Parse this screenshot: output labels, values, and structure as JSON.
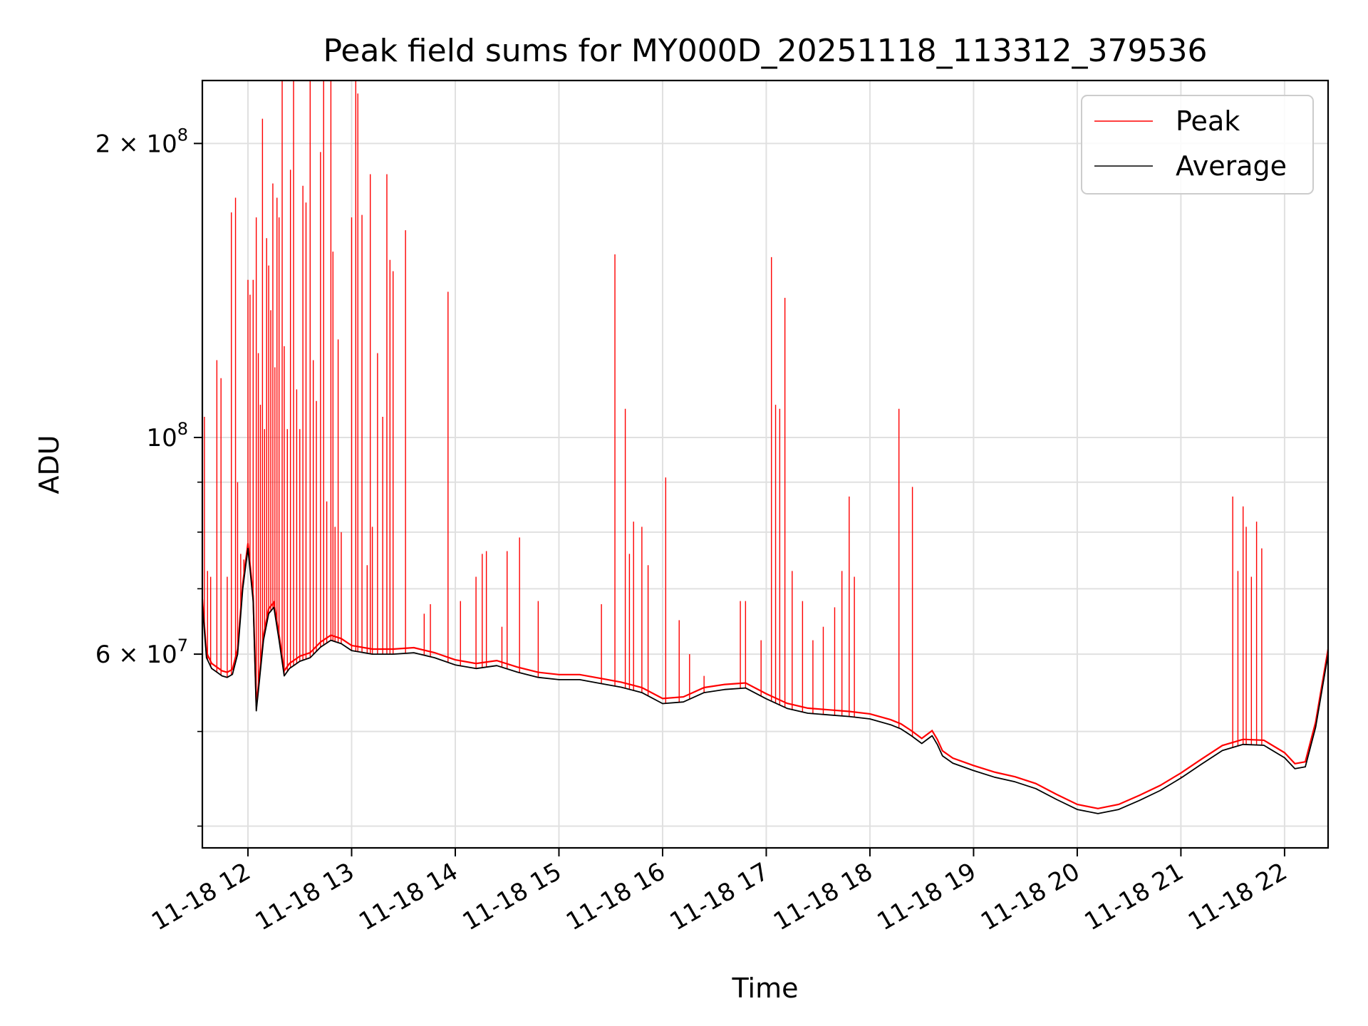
{
  "chart_data": {
    "type": "line",
    "title": "Peak field sums for MY000D_20251118_113312_379536",
    "xlabel": "Time",
    "ylabel": "ADU",
    "yscale": "log",
    "xlim": [
      11.56,
      22.42
    ],
    "ylim": [
      38000000,
      232000000
    ],
    "x_ticks": [
      {
        "value": 12,
        "label": "11-18 12"
      },
      {
        "value": 13,
        "label": "11-18 13"
      },
      {
        "value": 14,
        "label": "11-18 14"
      },
      {
        "value": 15,
        "label": "11-18 15"
      },
      {
        "value": 16,
        "label": "11-18 16"
      },
      {
        "value": 17,
        "label": "11-18 17"
      },
      {
        "value": 18,
        "label": "11-18 18"
      },
      {
        "value": 19,
        "label": "11-18 19"
      },
      {
        "value": 20,
        "label": "11-18 20"
      },
      {
        "value": 21,
        "label": "11-18 21"
      },
      {
        "value": 22,
        "label": "11-18 22"
      }
    ],
    "y_major_ticks": [
      {
        "value": 60000000,
        "mant": "6",
        "exp": "7"
      },
      {
        "value": 100000000,
        "mant": "",
        "exp": "8"
      },
      {
        "value": 200000000,
        "mant": "2",
        "exp": "8"
      }
    ],
    "y_minor_ticks": [
      40000000,
      50000000,
      70000000,
      80000000,
      90000000
    ],
    "legend": {
      "position": "upper right",
      "entries": [
        "Peak",
        "Average"
      ]
    },
    "series": [
      {
        "name": "Average",
        "color": "#000000",
        "x": [
          11.56,
          11.6,
          11.65,
          11.7,
          11.75,
          11.8,
          11.85,
          11.9,
          11.95,
          12.0,
          12.05,
          12.08,
          12.1,
          12.15,
          12.2,
          12.25,
          12.3,
          12.35,
          12.4,
          12.45,
          12.5,
          12.6,
          12.7,
          12.8,
          12.9,
          13.0,
          13.2,
          13.4,
          13.6,
          13.8,
          14.0,
          14.2,
          14.4,
          14.6,
          14.8,
          15.0,
          15.2,
          15.4,
          15.6,
          15.8,
          16.0,
          16.2,
          16.4,
          16.6,
          16.8,
          17.0,
          17.2,
          17.4,
          17.6,
          17.8,
          18.0,
          18.2,
          18.3,
          18.4,
          18.5,
          18.6,
          18.65,
          18.7,
          18.8,
          19.0,
          19.2,
          19.4,
          19.6,
          19.8,
          20.0,
          20.2,
          20.4,
          20.6,
          20.8,
          21.0,
          21.2,
          21.4,
          21.6,
          21.8,
          22.0,
          22.1,
          22.2,
          22.3,
          22.42
        ],
        "values": [
          67500000,
          59500000,
          58000000,
          57500000,
          57000000,
          56800000,
          57200000,
          60000000,
          70000000,
          77000000,
          68000000,
          52500000,
          55000000,
          62000000,
          66000000,
          67000000,
          62000000,
          57000000,
          58000000,
          58500000,
          59000000,
          59500000,
          61000000,
          62000000,
          61500000,
          60500000,
          60000000,
          60000000,
          60200000,
          59500000,
          58500000,
          58000000,
          58400000,
          57500000,
          56800000,
          56500000,
          56500000,
          56000000,
          55500000,
          54800000,
          53400000,
          53600000,
          54800000,
          55200000,
          55400000,
          54000000,
          52800000,
          52200000,
          52000000,
          51800000,
          51500000,
          50800000,
          50300000,
          49500000,
          48600000,
          49500000,
          48500000,
          47200000,
          46400000,
          45600000,
          44900000,
          44400000,
          43700000,
          42600000,
          41600000,
          41200000,
          41600000,
          42500000,
          43500000,
          44800000,
          46300000,
          47800000,
          48500000,
          48400000,
          47000000,
          45800000,
          46000000,
          50500000,
          60000000
        ]
      },
      {
        "name": "Peak",
        "color": "#ff0000",
        "spikes": [
          {
            "x": 11.58,
            "y": 105000000
          },
          {
            "x": 11.61,
            "y": 73000000
          },
          {
            "x": 11.64,
            "y": 72000000
          },
          {
            "x": 11.7,
            "y": 120000000
          },
          {
            "x": 11.74,
            "y": 115000000
          },
          {
            "x": 11.8,
            "y": 72000000
          },
          {
            "x": 11.84,
            "y": 170000000
          },
          {
            "x": 11.88,
            "y": 176000000
          },
          {
            "x": 11.9,
            "y": 90000000
          },
          {
            "x": 11.93,
            "y": 76000000
          },
          {
            "x": 11.96,
            "y": 75000000
          },
          {
            "x": 12.0,
            "y": 145000000
          },
          {
            "x": 12.02,
            "y": 140000000
          },
          {
            "x": 12.05,
            "y": 145000000
          },
          {
            "x": 12.08,
            "y": 168000000
          },
          {
            "x": 12.1,
            "y": 122000000
          },
          {
            "x": 12.12,
            "y": 108000000
          },
          {
            "x": 12.14,
            "y": 212000000
          },
          {
            "x": 12.16,
            "y": 102000000
          },
          {
            "x": 12.18,
            "y": 160000000
          },
          {
            "x": 12.2,
            "y": 150000000
          },
          {
            "x": 12.22,
            "y": 135000000
          },
          {
            "x": 12.24,
            "y": 182000000
          },
          {
            "x": 12.26,
            "y": 118000000
          },
          {
            "x": 12.28,
            "y": 176000000
          },
          {
            "x": 12.3,
            "y": 168000000
          },
          {
            "x": 12.33,
            "y": 232000000
          },
          {
            "x": 12.35,
            "y": 124000000
          },
          {
            "x": 12.38,
            "y": 102000000
          },
          {
            "x": 12.41,
            "y": 188000000
          },
          {
            "x": 12.44,
            "y": 232000000
          },
          {
            "x": 12.47,
            "y": 112000000
          },
          {
            "x": 12.5,
            "y": 102000000
          },
          {
            "x": 12.53,
            "y": 181000000
          },
          {
            "x": 12.56,
            "y": 174000000
          },
          {
            "x": 12.6,
            "y": 232000000
          },
          {
            "x": 12.63,
            "y": 120000000
          },
          {
            "x": 12.66,
            "y": 109000000
          },
          {
            "x": 12.7,
            "y": 196000000
          },
          {
            "x": 12.73,
            "y": 232000000
          },
          {
            "x": 12.76,
            "y": 86000000
          },
          {
            "x": 12.8,
            "y": 232000000
          },
          {
            "x": 12.82,
            "y": 155000000
          },
          {
            "x": 12.84,
            "y": 81000000
          },
          {
            "x": 12.87,
            "y": 126000000
          },
          {
            "x": 12.9,
            "y": 80000000
          },
          {
            "x": 13.0,
            "y": 168000000
          },
          {
            "x": 13.04,
            "y": 232000000
          },
          {
            "x": 13.06,
            "y": 225000000
          },
          {
            "x": 13.1,
            "y": 169000000
          },
          {
            "x": 13.15,
            "y": 74000000
          },
          {
            "x": 13.18,
            "y": 186000000
          },
          {
            "x": 13.2,
            "y": 81000000
          },
          {
            "x": 13.25,
            "y": 122000000
          },
          {
            "x": 13.3,
            "y": 105000000
          },
          {
            "x": 13.34,
            "y": 186000000
          },
          {
            "x": 13.37,
            "y": 152000000
          },
          {
            "x": 13.4,
            "y": 148000000
          },
          {
            "x": 13.52,
            "y": 163000000
          },
          {
            "x": 13.7,
            "y": 66000000
          },
          {
            "x": 13.76,
            "y": 67500000
          },
          {
            "x": 13.93,
            "y": 141000000
          },
          {
            "x": 14.05,
            "y": 68000000
          },
          {
            "x": 14.2,
            "y": 72000000
          },
          {
            "x": 14.26,
            "y": 76000000
          },
          {
            "x": 14.3,
            "y": 76500000
          },
          {
            "x": 14.45,
            "y": 64000000
          },
          {
            "x": 14.5,
            "y": 76500000
          },
          {
            "x": 14.62,
            "y": 79000000
          },
          {
            "x": 14.8,
            "y": 68000000
          },
          {
            "x": 15.41,
            "y": 67500000
          },
          {
            "x": 15.54,
            "y": 154000000
          },
          {
            "x": 15.64,
            "y": 107000000
          },
          {
            "x": 15.68,
            "y": 76000000
          },
          {
            "x": 15.72,
            "y": 82000000
          },
          {
            "x": 15.8,
            "y": 81000000
          },
          {
            "x": 15.86,
            "y": 74000000
          },
          {
            "x": 16.03,
            "y": 91000000
          },
          {
            "x": 16.16,
            "y": 65000000
          },
          {
            "x": 16.26,
            "y": 60000000
          },
          {
            "x": 16.4,
            "y": 57000000
          },
          {
            "x": 16.75,
            "y": 68000000
          },
          {
            "x": 16.8,
            "y": 68000000
          },
          {
            "x": 16.95,
            "y": 62000000
          },
          {
            "x": 17.05,
            "y": 153000000
          },
          {
            "x": 17.09,
            "y": 108000000
          },
          {
            "x": 17.13,
            "y": 107000000
          },
          {
            "x": 17.18,
            "y": 139000000
          },
          {
            "x": 17.25,
            "y": 73000000
          },
          {
            "x": 17.35,
            "y": 68000000
          },
          {
            "x": 17.45,
            "y": 62000000
          },
          {
            "x": 17.55,
            "y": 64000000
          },
          {
            "x": 17.66,
            "y": 67000000
          },
          {
            "x": 17.73,
            "y": 73000000
          },
          {
            "x": 17.8,
            "y": 87000000
          },
          {
            "x": 17.85,
            "y": 72000000
          },
          {
            "x": 18.28,
            "y": 107000000
          },
          {
            "x": 18.41,
            "y": 89000000
          },
          {
            "x": 21.0,
            "y": 45000000
          },
          {
            "x": 21.5,
            "y": 87000000
          },
          {
            "x": 21.55,
            "y": 73000000
          },
          {
            "x": 21.6,
            "y": 85000000
          },
          {
            "x": 21.63,
            "y": 81000000
          },
          {
            "x": 21.68,
            "y": 72000000
          },
          {
            "x": 21.73,
            "y": 82000000
          },
          {
            "x": 21.78,
            "y": 77000000
          }
        ]
      }
    ]
  }
}
